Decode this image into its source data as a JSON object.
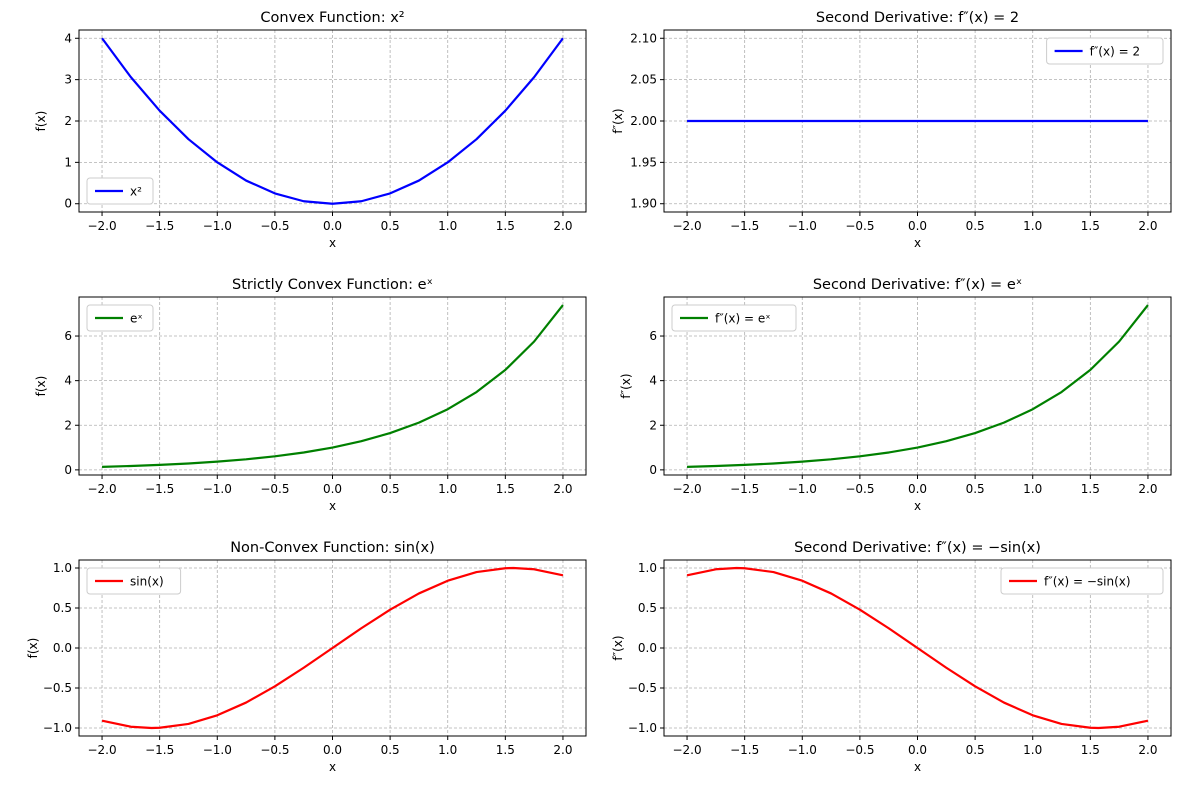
{
  "chart_data": [
    {
      "type": "line",
      "title": "Convex Function: x²",
      "xlabel": "x",
      "ylabel": "f(x)",
      "xlim": [
        -2.2,
        2.2
      ],
      "ylim": [
        -0.2,
        4.2
      ],
      "x_ticks": [
        -2.0,
        -1.5,
        -1.0,
        -0.5,
        0.0,
        0.5,
        1.0,
        1.5,
        2.0
      ],
      "y_ticks": [
        0,
        1,
        2,
        3,
        4
      ],
      "x_tick_labels": [
        "−2.0",
        "−1.5",
        "−1.0",
        "−0.5",
        "0.0",
        "0.5",
        "1.0",
        "1.5",
        "2.0"
      ],
      "y_tick_labels": [
        "0",
        "1",
        "2",
        "3",
        "4"
      ],
      "grid": true,
      "legend_position": "lower-left",
      "series": [
        {
          "name": "x²",
          "color": "#0000ff",
          "x": [
            -2.0,
            -1.75,
            -1.5,
            -1.25,
            -1.0,
            -0.75,
            -0.5,
            -0.25,
            0.0,
            0.25,
            0.5,
            0.75,
            1.0,
            1.25,
            1.5,
            1.75,
            2.0
          ],
          "y": [
            4.0,
            3.06,
            2.25,
            1.56,
            1.0,
            0.56,
            0.25,
            0.06,
            0.0,
            0.06,
            0.25,
            0.56,
            1.0,
            1.56,
            2.25,
            3.06,
            4.0
          ]
        }
      ]
    },
    {
      "type": "line",
      "title": "Second Derivative: f″(x) = 2",
      "xlabel": "x",
      "ylabel": "f″(x)",
      "xlim": [
        -2.2,
        2.2
      ],
      "ylim": [
        1.89,
        2.11
      ],
      "x_ticks": [
        -2.0,
        -1.5,
        -1.0,
        -0.5,
        0.0,
        0.5,
        1.0,
        1.5,
        2.0
      ],
      "y_ticks": [
        1.9,
        1.95,
        2.0,
        2.05,
        2.1
      ],
      "x_tick_labels": [
        "−2.0",
        "−1.5",
        "−1.0",
        "−0.5",
        "0.0",
        "0.5",
        "1.0",
        "1.5",
        "2.0"
      ],
      "y_tick_labels": [
        "1.90",
        "1.95",
        "2.00",
        "2.05",
        "2.10"
      ],
      "grid": true,
      "legend_position": "upper-right",
      "series": [
        {
          "name": "f″(x) = 2",
          "color": "#0000ff",
          "x": [
            -2.0,
            2.0
          ],
          "y": [
            2.0,
            2.0
          ]
        }
      ]
    },
    {
      "type": "line",
      "title": "Strictly Convex Function: eˣ",
      "xlabel": "x",
      "ylabel": "f(x)",
      "xlim": [
        -2.2,
        2.2
      ],
      "ylim": [
        -0.23,
        7.75
      ],
      "x_ticks": [
        -2.0,
        -1.5,
        -1.0,
        -0.5,
        0.0,
        0.5,
        1.0,
        1.5,
        2.0
      ],
      "y_ticks": [
        0,
        2,
        4,
        6
      ],
      "x_tick_labels": [
        "−2.0",
        "−1.5",
        "−1.0",
        "−0.5",
        "0.0",
        "0.5",
        "1.0",
        "1.5",
        "2.0"
      ],
      "y_tick_labels": [
        "0",
        "2",
        "4",
        "6"
      ],
      "grid": true,
      "legend_position": "upper-left",
      "series": [
        {
          "name": "eˣ",
          "color": "#008000",
          "x": [
            -2.0,
            -1.75,
            -1.5,
            -1.25,
            -1.0,
            -0.75,
            -0.5,
            -0.25,
            0.0,
            0.25,
            0.5,
            0.75,
            1.0,
            1.25,
            1.5,
            1.75,
            2.0
          ],
          "y": [
            0.135,
            0.174,
            0.223,
            0.287,
            0.368,
            0.472,
            0.607,
            0.779,
            1.0,
            1.284,
            1.649,
            2.117,
            2.718,
            3.49,
            4.482,
            5.755,
            7.389
          ]
        }
      ]
    },
    {
      "type": "line",
      "title": "Second Derivative: f″(x) = eˣ",
      "xlabel": "x",
      "ylabel": "f″(x)",
      "xlim": [
        -2.2,
        2.2
      ],
      "ylim": [
        -0.23,
        7.75
      ],
      "x_ticks": [
        -2.0,
        -1.5,
        -1.0,
        -0.5,
        0.0,
        0.5,
        1.0,
        1.5,
        2.0
      ],
      "y_ticks": [
        0,
        2,
        4,
        6
      ],
      "x_tick_labels": [
        "−2.0",
        "−1.5",
        "−1.0",
        "−0.5",
        "0.0",
        "0.5",
        "1.0",
        "1.5",
        "2.0"
      ],
      "y_tick_labels": [
        "0",
        "2",
        "4",
        "6"
      ],
      "grid": true,
      "legend_position": "upper-left",
      "series": [
        {
          "name": "f″(x) = eˣ",
          "color": "#008000",
          "x": [
            -2.0,
            -1.75,
            -1.5,
            -1.25,
            -1.0,
            -0.75,
            -0.5,
            -0.25,
            0.0,
            0.25,
            0.5,
            0.75,
            1.0,
            1.25,
            1.5,
            1.75,
            2.0
          ],
          "y": [
            0.135,
            0.174,
            0.223,
            0.287,
            0.368,
            0.472,
            0.607,
            0.779,
            1.0,
            1.284,
            1.649,
            2.117,
            2.718,
            3.49,
            4.482,
            5.755,
            7.389
          ]
        }
      ]
    },
    {
      "type": "line",
      "title": "Non-Convex Function: sin(x)",
      "xlabel": "x",
      "ylabel": "f(x)",
      "xlim": [
        -2.2,
        2.2
      ],
      "ylim": [
        -1.1,
        1.1
      ],
      "x_ticks": [
        -2.0,
        -1.5,
        -1.0,
        -0.5,
        0.0,
        0.5,
        1.0,
        1.5,
        2.0
      ],
      "y_ticks": [
        -1.0,
        -0.5,
        0.0,
        0.5,
        1.0
      ],
      "x_tick_labels": [
        "−2.0",
        "−1.5",
        "−1.0",
        "−0.5",
        "0.0",
        "0.5",
        "1.0",
        "1.5",
        "2.0"
      ],
      "y_tick_labels": [
        "−1.0",
        "−0.5",
        "0.0",
        "0.5",
        "1.0"
      ],
      "grid": true,
      "legend_position": "upper-left",
      "series": [
        {
          "name": "sin(x)",
          "color": "#ff0000",
          "x": [
            -2.0,
            -1.75,
            -1.5708,
            -1.5,
            -1.25,
            -1.0,
            -0.75,
            -0.5,
            -0.25,
            0.0,
            0.25,
            0.5,
            0.75,
            1.0,
            1.25,
            1.5,
            1.5708,
            1.75,
            2.0
          ],
          "y": [
            -0.909,
            -0.984,
            -1.0,
            -0.997,
            -0.949,
            -0.841,
            -0.682,
            -0.479,
            -0.247,
            0.0,
            0.247,
            0.479,
            0.682,
            0.841,
            0.949,
            0.997,
            1.0,
            0.984,
            0.909
          ]
        }
      ]
    },
    {
      "type": "line",
      "title": "Second Derivative: f″(x) = −sin(x)",
      "xlabel": "x",
      "ylabel": "f″(x)",
      "xlim": [
        -2.2,
        2.2
      ],
      "ylim": [
        -1.1,
        1.1
      ],
      "x_ticks": [
        -2.0,
        -1.5,
        -1.0,
        -0.5,
        0.0,
        0.5,
        1.0,
        1.5,
        2.0
      ],
      "y_ticks": [
        -1.0,
        -0.5,
        0.0,
        0.5,
        1.0
      ],
      "x_tick_labels": [
        "−2.0",
        "−1.5",
        "−1.0",
        "−0.5",
        "0.0",
        "0.5",
        "1.0",
        "1.5",
        "2.0"
      ],
      "y_tick_labels": [
        "−1.0",
        "−0.5",
        "0.0",
        "0.5",
        "1.0"
      ],
      "grid": true,
      "legend_position": "upper-right",
      "series": [
        {
          "name": "f″(x) = −sin(x)",
          "color": "#ff0000",
          "x": [
            -2.0,
            -1.75,
            -1.5708,
            -1.5,
            -1.25,
            -1.0,
            -0.75,
            -0.5,
            -0.25,
            0.0,
            0.25,
            0.5,
            0.75,
            1.0,
            1.25,
            1.5,
            1.5708,
            1.75,
            2.0
          ],
          "y": [
            0.909,
            0.984,
            1.0,
            0.997,
            0.949,
            0.841,
            0.682,
            0.479,
            0.247,
            0.0,
            -0.247,
            -0.479,
            -0.682,
            -0.841,
            -0.949,
            -0.997,
            -1.0,
            -0.984,
            -0.909
          ]
        }
      ]
    }
  ]
}
